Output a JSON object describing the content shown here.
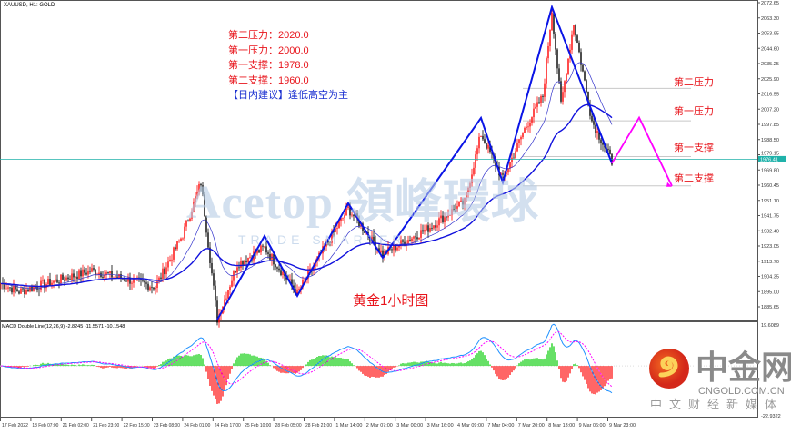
{
  "window": {
    "title": "XAUUSD, H1: GOLD"
  },
  "notes": {
    "lines": [
      "第二压力：2020.0",
      "第一压力：2000.0",
      "第一支撑：1978.0",
      "第二支撑：1960.0"
    ],
    "advice": "【日内建议】逢低高空为主"
  },
  "caption": "黄金1小时图",
  "levels": [
    {
      "label": "第二压力",
      "price": 2020
    },
    {
      "label": "第一压力",
      "price": 2000
    },
    {
      "label": "第一支撑",
      "price": 1978
    },
    {
      "label": "第二支撑",
      "price": 1960
    }
  ],
  "watermark": {
    "brand": "Acetop 領峰環球",
    "tagline": "TRADE SMARTER"
  },
  "logo": {
    "name": "中金网",
    "url_text": "CNGOLD.COM.CN",
    "slogan": "中文财经新媒体"
  },
  "chart_data": {
    "type": "candlestick",
    "symbol": "XAUUSD",
    "timeframe": "H1",
    "y_ticks": [
      "2072.65",
      "2063.30",
      "2053.95",
      "2044.60",
      "2035.25",
      "2025.90",
      "2016.55",
      "2007.20",
      "1997.85",
      "1988.50",
      "1979.15",
      "1969.80",
      "1960.45",
      "1951.10",
      "1941.75",
      "1932.40",
      "1923.05",
      "1913.70",
      "1904.35",
      "1895.00",
      "1885.65"
    ],
    "ylim": [
      1885.65,
      2072.65
    ],
    "current_price": "1976.41",
    "x_ticks": [
      "17 Feb 2022",
      "18 Feb 07:00",
      "21 Feb 02:00",
      "21 Feb 23:00",
      "22 Feb 15:00",
      "23 Feb 08:00",
      "24 Feb 01:00",
      "24 Feb 17:00",
      "25 Feb 10:00",
      "28 Feb 05:00",
      "28 Feb 21:00",
      "1 Mar 14:00",
      "2 Mar 07:00",
      "3 Mar 00:00",
      "3 Mar 16:00",
      "4 Mar 09:00",
      "7 Mar 04:00",
      "7 Mar 20:00",
      "8 Mar 13:00",
      "9 Mar 06:00",
      "9 Mar 23:00"
    ],
    "price_path": [
      [
        0,
        1900
      ],
      [
        10,
        1895
      ],
      [
        50,
        1908
      ],
      [
        85,
        1898
      ],
      [
        100,
        1930
      ],
      [
        110,
        1962
      ],
      [
        119,
        1878
      ],
      [
        130,
        1912
      ],
      [
        145,
        1922
      ],
      [
        163,
        1894
      ],
      [
        191,
        1946
      ],
      [
        210,
        1918
      ],
      [
        235,
        1934
      ],
      [
        255,
        1950
      ],
      [
        264,
        1992
      ],
      [
        276,
        1964
      ],
      [
        288,
        1995
      ],
      [
        298,
        2015
      ],
      [
        303,
        2068
      ],
      [
        308,
        2010
      ],
      [
        315,
        2060
      ],
      [
        325,
        2000
      ],
      [
        336,
        1975
      ]
    ],
    "zigzag": [
      [
        119,
        1877.8
      ],
      [
        145,
        1929.2
      ],
      [
        163,
        1892.4
      ],
      [
        191,
        1949.3
      ],
      [
        210,
        1915.8
      ],
      [
        264,
        2001.8
      ],
      [
        276,
        1962.1
      ],
      [
        303,
        2069.9
      ],
      [
        336,
        1973.9
      ]
    ],
    "forecast": [
      [
        336,
        1973.9
      ],
      [
        351,
        2002
      ],
      [
        369,
        1960
      ]
    ],
    "macd": {
      "label": "MACD Double Line(12,26,9) -2.8245 -11.5571 -10.1548",
      "ylim": [
        -22.9322,
        19.6089
      ],
      "y_ticks": [
        "19.6089",
        "-22.9322"
      ]
    },
    "colors": {
      "up": "#ff0000",
      "down": "#000000",
      "ma_fast": "#3333cc",
      "ma_slow": "#1010dd",
      "zigzag": "#0a14e6",
      "forecast": "#ff00ff",
      "current": "#20b2aa",
      "macd_pos": "#00cc00",
      "macd_neg": "#ff0000",
      "macd_line": "#1e90ff",
      "signal": "#ff00ff"
    }
  }
}
